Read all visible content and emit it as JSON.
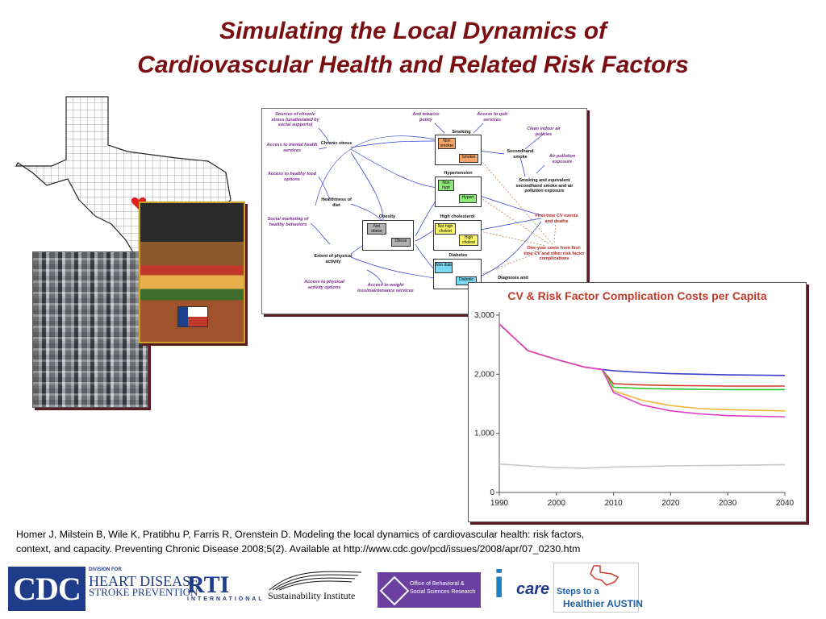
{
  "title": {
    "line1": "Simulating the Local Dynamics of",
    "line2": "Cardiovascular Health and Related Risk Factors"
  },
  "diagram": {
    "labels": {
      "sources_stress": "Sources of chronic stress (unalleviated by social supports)",
      "anti_tobacco": "Anti tobacco policy",
      "access_quit": "Access to quit services",
      "clean_indoor": "Clean indoor air policies",
      "access_mental": "Access to mental health services",
      "chronic_stress": "Chronic stress",
      "smoking": "Smoking",
      "non_smoker": "Non smoker",
      "smoker": "Smoker",
      "secondhand": "Secondhand smoke",
      "air_pollution": "Air pollution exposure",
      "access_food": "Access to healthy food options",
      "hypertension": "Hypertension",
      "non_hypt": "Non hypt",
      "hypert": "Hypert",
      "smoking_equiv": "Smoking and equivalent secondhand smoke and air pollution exposure",
      "healthiness_diet": "Healthiness of diet",
      "social_marketing": "Social marketing of healthy behaviors",
      "obesity": "Obesity",
      "not_obese": "Not obese",
      "obese": "Obese",
      "high_chol": "High cholesterol",
      "not_high_chol": "Not high cholest",
      "high_cholest": "High cholest",
      "first_time_cv": "First-time CV events and deaths",
      "one_year_costs": "One-year costs from first-time CV and other risk factor complications",
      "extent_activity": "Extent of physical activity",
      "diabetes": "Diabetes",
      "non_diab": "Non diab",
      "diabetic": "Diabetic",
      "diagnosis": "Diagnosis and",
      "access_activity": "Access to physical activity options",
      "access_weight": "Access to weight loss/maintenance services"
    }
  },
  "chart_data": {
    "type": "line",
    "title": "CV & Risk Factor Complication Costs per Capita",
    "xlabel": "",
    "ylabel": "",
    "x_ticks": [
      1990,
      2000,
      2010,
      2020,
      2030,
      2040
    ],
    "y_ticks": [
      0,
      1000,
      2000,
      3000
    ],
    "y_tick_labels": [
      "0",
      "1,000",
      "2,000",
      "3,000"
    ],
    "xlim": [
      1990,
      2040
    ],
    "ylim": [
      0,
      3000
    ],
    "grid": false,
    "x": [
      1990,
      1995,
      2000,
      2005,
      2008,
      2010,
      2015,
      2020,
      2025,
      2030,
      2035,
      2040
    ],
    "series": [
      {
        "color": "#3a3fc8",
        "values": [
          2850,
          2400,
          2250,
          2120,
          2080,
          2060,
          2030,
          2010,
          2000,
          1990,
          1985,
          1980
        ]
      },
      {
        "color": "#d23a2a",
        "values": [
          2850,
          2400,
          2250,
          2120,
          2080,
          1840,
          1820,
          1810,
          1805,
          1800,
          1800,
          1800
        ]
      },
      {
        "color": "#2ec42e",
        "values": [
          2850,
          2400,
          2250,
          2120,
          2080,
          1780,
          1760,
          1750,
          1745,
          1740,
          1740,
          1740
        ]
      },
      {
        "color": "#f0b43a",
        "values": [
          2850,
          2400,
          2250,
          2120,
          2080,
          1720,
          1560,
          1470,
          1420,
          1400,
          1390,
          1380
        ]
      },
      {
        "color": "#e040c8",
        "values": [
          2850,
          2400,
          2250,
          2120,
          2080,
          1690,
          1480,
          1380,
          1330,
          1300,
          1290,
          1280
        ]
      },
      {
        "color": "#c8c8c8",
        "values": [
          480,
          450,
          420,
          410,
          420,
          430,
          440,
          450,
          455,
          460,
          465,
          470
        ]
      }
    ]
  },
  "citation": {
    "line1": "Homer J, Milstein B, Wile K, Pratibhu P, Farris R, Orenstein D. Modeling the local dynamics of cardiovascular health: risk factors,",
    "line2": "context, and capacity. Preventing Chronic Disease 2008;5(2). Available at http://www.cdc.gov/pcd/issues/2008/apr/07_0230.htm"
  },
  "logos": {
    "cdc": "CDC",
    "division_for": "DIVISION FOR",
    "heart_disease": "HEART DISEASE",
    "stroke_prevention": "STROKE PREVENTION",
    "rti": "RTI",
    "rti_sub": "INTERNATIONAL",
    "sustainability": "Sustainability Institute",
    "obssr": "Office of Behavioral & Social Sciences Research",
    "icare_i": "i",
    "icare_t": "care",
    "steps1": "Steps to a",
    "steps2": "Healthier AUSTIN"
  },
  "colors": {
    "title": "#7a0f12",
    "chart_title": "#c0392b",
    "frame_shadow": "#5a1a24"
  }
}
